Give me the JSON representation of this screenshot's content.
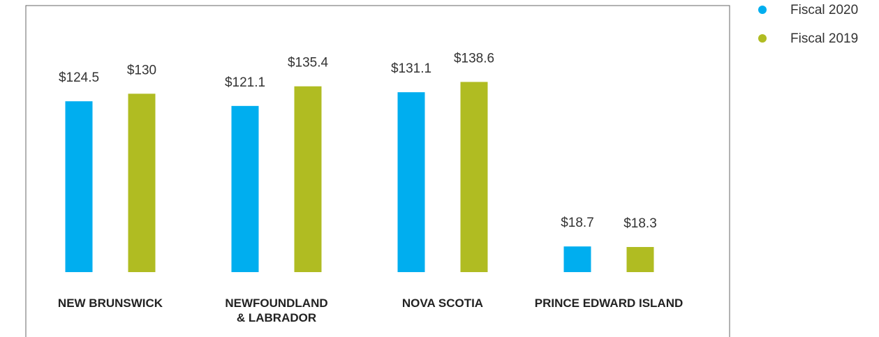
{
  "chart_data": {
    "type": "bar",
    "categories": [
      "NEW BRUNSWICK",
      "NEWFOUNDLAND & LABRADOR",
      "NOVA SCOTIA",
      "PRINCE EDWARD ISLAND"
    ],
    "series": [
      {
        "name": "Fiscal 2020",
        "color": "#00aeef",
        "values": [
          124.5,
          121.1,
          131.1,
          18.7
        ],
        "value_labels": [
          "$124.5",
          "$121.1",
          "$131.1",
          "$18.7"
        ]
      },
      {
        "name": "Fiscal 2019",
        "color": "#b0bc22",
        "values": [
          130,
          135.4,
          138.6,
          18.3
        ],
        "value_labels": [
          "$130",
          "$135.4",
          "$138.6",
          "$18.3"
        ]
      }
    ],
    "ylim": [
      0,
      150
    ],
    "grid": false,
    "legend": "top-right"
  }
}
